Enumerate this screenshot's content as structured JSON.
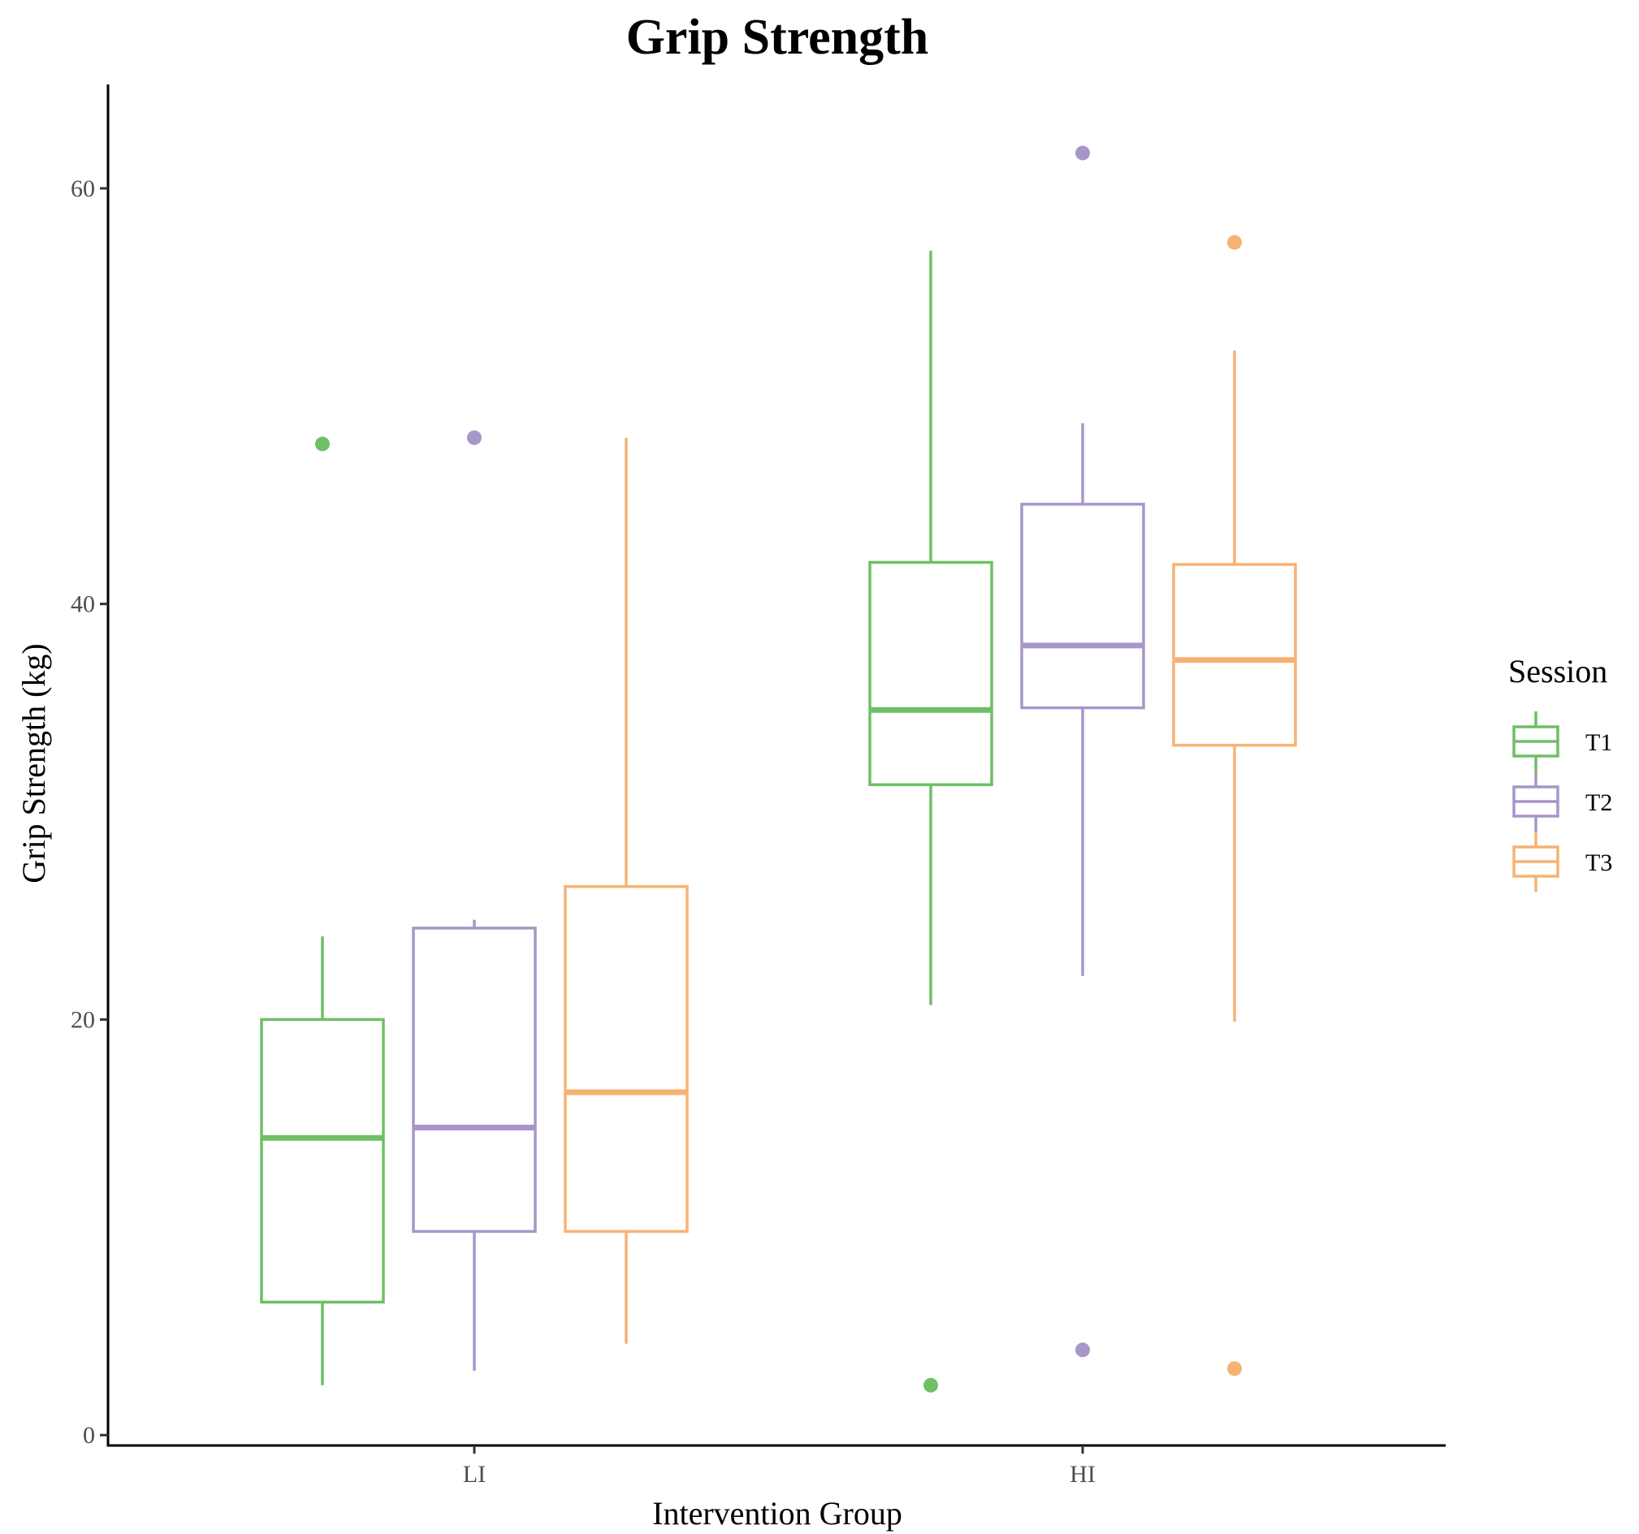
{
  "chart_data": {
    "type": "boxplot",
    "title": "Grip Strength",
    "xlabel": "Intervention Group",
    "ylabel": "Grip Strength (kg)",
    "categories": [
      "LI",
      "HI"
    ],
    "yticks": [
      "0",
      "20",
      "40",
      "60"
    ],
    "ylim": [
      -0.5,
      65
    ],
    "legend": {
      "title": "Session",
      "position": "right"
    },
    "grid": false,
    "series": [
      {
        "name": "T1",
        "color": "#6fbf66",
        "boxes": [
          {
            "whisker_low": 2.4,
            "q1": 6.4,
            "median": 14.3,
            "q3": 20.0,
            "whisker_high": 24.0,
            "outliers": [
              47.7
            ]
          },
          {
            "whisker_low": 20.7,
            "q1": 31.3,
            "median": 34.9,
            "q3": 42.0,
            "whisker_high": 57.0,
            "outliers": [
              2.4
            ]
          }
        ]
      },
      {
        "name": "T2",
        "color": "#a896c9",
        "boxes": [
          {
            "whisker_low": 3.1,
            "q1": 9.8,
            "median": 14.8,
            "q3": 24.4,
            "whisker_high": 24.8,
            "outliers": [
              48.0
            ]
          },
          {
            "whisker_low": 22.1,
            "q1": 35.0,
            "median": 38.0,
            "q3": 44.8,
            "whisker_high": 48.7,
            "outliers": [
              61.7,
              4.1
            ]
          }
        ]
      },
      {
        "name": "T3",
        "color": "#f7b272",
        "boxes": [
          {
            "whisker_low": 4.4,
            "q1": 9.8,
            "median": 16.5,
            "q3": 26.4,
            "whisker_high": 48.0,
            "outliers": []
          },
          {
            "whisker_low": 19.9,
            "q1": 33.2,
            "median": 37.3,
            "q3": 41.9,
            "whisker_high": 52.2,
            "outliers": [
              57.4,
              3.2
            ]
          }
        ]
      }
    ]
  }
}
